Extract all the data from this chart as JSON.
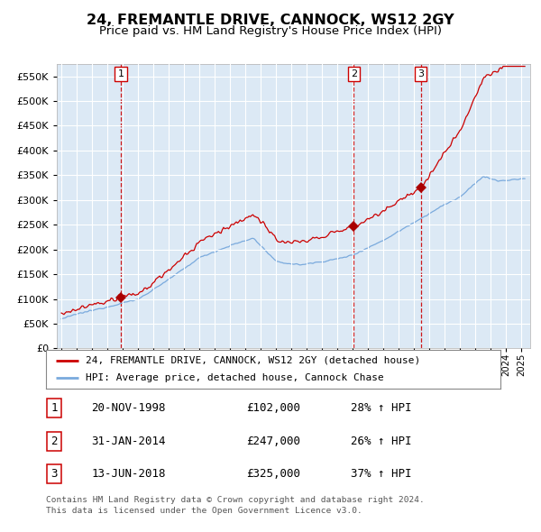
{
  "title": "24, FREMANTLE DRIVE, CANNOCK, WS12 2GY",
  "subtitle": "Price paid vs. HM Land Registry's House Price Index (HPI)",
  "title_fontsize": 12,
  "subtitle_fontsize": 10,
  "plot_bg_color": "#dce9f5",
  "ylim": [
    0,
    575000
  ],
  "yticks": [
    0,
    50000,
    100000,
    150000,
    200000,
    250000,
    300000,
    350000,
    400000,
    450000,
    500000,
    550000
  ],
  "xlim_start": 1994.7,
  "xlim_end": 2025.6,
  "sale_points": [
    {
      "year": 1998.88,
      "price": 102000,
      "label": "1",
      "date": "20-NOV-1998",
      "price_str": "£102,000",
      "hpi_pct": "28% ↑ HPI"
    },
    {
      "year": 2014.08,
      "price": 247000,
      "label": "2",
      "date": "31-JAN-2014",
      "price_str": "£247,000",
      "hpi_pct": "26% ↑ HPI"
    },
    {
      "year": 2018.45,
      "price": 325000,
      "label": "3",
      "date": "13-JUN-2018",
      "price_str": "£325,000",
      "hpi_pct": "37% ↑ HPI"
    }
  ],
  "legend_red_label": "24, FREMANTLE DRIVE, CANNOCK, WS12 2GY (detached house)",
  "legend_blue_label": "HPI: Average price, detached house, Cannock Chase",
  "footer_line1": "Contains HM Land Registry data © Crown copyright and database right 2024.",
  "footer_line2": "This data is licensed under the Open Government Licence v3.0.",
  "red_color": "#cc0000",
  "blue_color": "#7aaadd",
  "marker_color": "#aa0000",
  "dashed_vline_color": "#cc0000"
}
